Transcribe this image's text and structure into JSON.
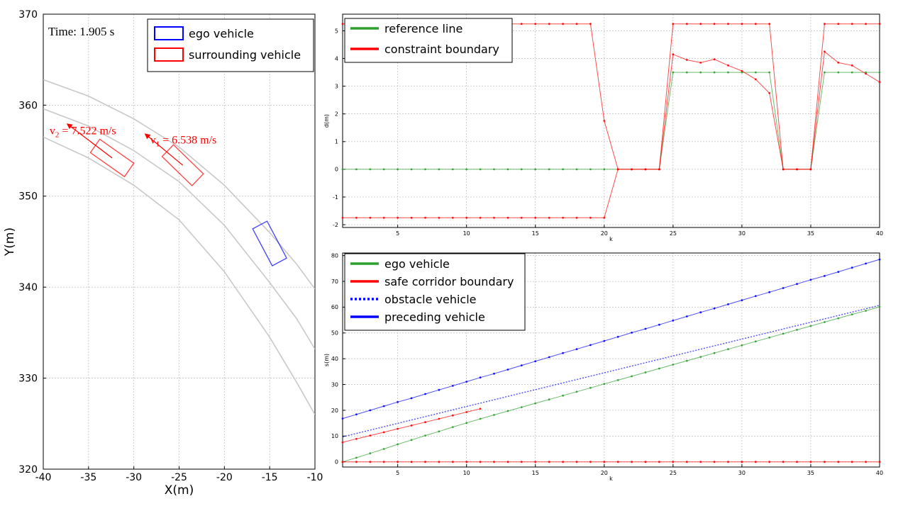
{
  "chart_data": [
    {
      "type": "scatter",
      "time_label": "Time: 1.905 s",
      "xlabel": "X(m)",
      "ylabel": "Y(m)",
      "xlim": [
        -40,
        -10
      ],
      "ylim": [
        320,
        370
      ],
      "xticks": [
        -40,
        -35,
        -30,
        -25,
        -20,
        -15,
        -10
      ],
      "yticks": [
        320,
        330,
        340,
        350,
        360,
        370
      ],
      "grid": true,
      "legend_position": "top-right",
      "legend": [
        {
          "name": "ego vehicle",
          "color": "#0000ff"
        },
        {
          "name": "surrounding vehicle",
          "color": "#ff0000"
        }
      ],
      "road_lines": [
        [
          [
            -40,
            362.8
          ],
          [
            -35,
            361.0
          ],
          [
            -30,
            358.5
          ],
          [
            -25,
            355.4
          ],
          [
            -20,
            351.2
          ],
          [
            -15,
            346.0
          ],
          [
            -12,
            342.5
          ],
          [
            -10,
            339.8
          ]
        ],
        [
          [
            -40,
            359.6
          ],
          [
            -35,
            357.7
          ],
          [
            -30,
            355.0
          ],
          [
            -25,
            351.6
          ],
          [
            -20,
            346.8
          ],
          [
            -15,
            340.5
          ],
          [
            -12,
            336.5
          ],
          [
            -10,
            333.2
          ]
        ],
        [
          [
            -40,
            356.5
          ],
          [
            -35,
            354.2
          ],
          [
            -30,
            351.2
          ],
          [
            -25,
            347.4
          ],
          [
            -20,
            341.7
          ],
          [
            -15,
            334.5
          ],
          [
            -12,
            329.5
          ],
          [
            -10,
            326.0
          ]
        ]
      ],
      "vehicles": [
        {
          "role": "ego",
          "color": "#0000ff",
          "center": [
            -15.0,
            344.8
          ],
          "heading_deg": -62,
          "length": 4.6,
          "width": 1.8
        },
        {
          "role": "surrounding",
          "color": "#ff0000",
          "center": [
            -32.4,
            354.2
          ],
          "heading_deg": -35,
          "length": 4.6,
          "width": 1.8,
          "arrow_to": [
            -37.3,
            357.9
          ],
          "speed_label": "v2 = 7.522 m/s",
          "speed_name": "v",
          "speed_sub": "2",
          "speed_value": " = 7.522 m/s",
          "label_at": [
            -39.3,
            356.8
          ]
        },
        {
          "role": "surrounding",
          "color": "#ff0000",
          "center": [
            -24.6,
            353.4
          ],
          "heading_deg": -44,
          "length": 4.6,
          "width": 1.8,
          "arrow_to": [
            -28.7,
            356.8
          ],
          "speed_label": "v1 = 6.538 m/s",
          "speed_name": "v",
          "speed_sub": "1",
          "speed_value": " = 6.538 m/s",
          "label_at": [
            -28.2,
            355.8
          ]
        }
      ]
    },
    {
      "type": "line",
      "xlabel": "k",
      "ylabel": "d(m)",
      "xlim": [
        1,
        40
      ],
      "ylim": [
        -2.1,
        5.6
      ],
      "xticks": [
        5,
        10,
        15,
        20,
        25,
        30,
        35,
        40
      ],
      "yticks": [
        -2,
        -1,
        0,
        1,
        2,
        3,
        4,
        5
      ],
      "grid": true,
      "legend_position": "top-left",
      "series": [
        {
          "name": "reference line",
          "color": "#2ca02c",
          "x": [
            1,
            2,
            3,
            4,
            5,
            6,
            7,
            8,
            9,
            10,
            11,
            12,
            13,
            14,
            15,
            16,
            17,
            18,
            19,
            20,
            21,
            22,
            23,
            24,
            25,
            26,
            27,
            28,
            29,
            30,
            31,
            32,
            33,
            34,
            35,
            36,
            37,
            38,
            39,
            40
          ],
          "y": [
            0,
            0,
            0,
            0,
            0,
            0,
            0,
            0,
            0,
            0,
            0,
            0,
            0,
            0,
            0,
            0,
            0,
            0,
            0,
            0,
            0,
            0,
            0,
            0,
            3.5,
            3.5,
            3.5,
            3.5,
            3.5,
            3.5,
            3.5,
            3.5,
            0,
            0,
            0,
            3.5,
            3.5,
            3.5,
            3.5,
            3.5
          ]
        },
        {
          "name": "constraint boundary",
          "color": "#ff0000",
          "x": [
            1,
            2,
            3,
            4,
            5,
            6,
            7,
            8,
            9,
            10,
            11,
            12,
            13,
            14,
            15,
            16,
            17,
            18,
            19,
            20,
            21,
            22,
            23,
            24,
            25,
            26,
            27,
            28,
            29,
            30,
            31,
            32,
            33,
            34,
            35,
            36,
            37,
            38,
            39,
            40
          ],
          "y": [
            5.25,
            5.25,
            5.25,
            5.25,
            5.25,
            5.25,
            5.25,
            5.25,
            5.25,
            5.25,
            5.25,
            5.25,
            5.25,
            5.25,
            5.25,
            5.25,
            5.25,
            5.25,
            5.25,
            1.75,
            0,
            0,
            0,
            0,
            5.25,
            5.25,
            5.25,
            5.25,
            5.25,
            5.25,
            5.25,
            5.25,
            0,
            0,
            0,
            5.25,
            5.25,
            5.25,
            5.25,
            5.25
          ]
        },
        {
          "name": "",
          "color": "#ff0000",
          "x": [
            1,
            2,
            3,
            4,
            5,
            6,
            7,
            8,
            9,
            10,
            11,
            12,
            13,
            14,
            15,
            16,
            17,
            18,
            19,
            20,
            21,
            22,
            23,
            24,
            25,
            26,
            27,
            28,
            29,
            30,
            31,
            32,
            33,
            34,
            35,
            36,
            37,
            38,
            39,
            40
          ],
          "y": [
            -1.75,
            -1.75,
            -1.75,
            -1.75,
            -1.75,
            -1.75,
            -1.75,
            -1.75,
            -1.75,
            -1.75,
            -1.75,
            -1.75,
            -1.75,
            -1.75,
            -1.75,
            -1.75,
            -1.75,
            -1.75,
            -1.75,
            -1.75,
            0,
            0,
            0,
            0,
            4.15,
            3.95,
            3.85,
            3.97,
            3.75,
            3.55,
            3.25,
            2.75,
            0,
            0,
            0,
            4.25,
            3.85,
            3.75,
            3.45,
            3.15
          ]
        }
      ]
    },
    {
      "type": "line",
      "xlabel": "k",
      "ylabel": "s(m)",
      "xlim": [
        1,
        40
      ],
      "ylim": [
        -2,
        81
      ],
      "xticks": [
        5,
        10,
        15,
        20,
        25,
        30,
        35,
        40
      ],
      "yticks": [
        0,
        10,
        20,
        30,
        40,
        50,
        60,
        70,
        80
      ],
      "grid": true,
      "legend_position": "top-left",
      "series": [
        {
          "name": "ego vehicle",
          "color": "#2ca02c",
          "style": "solid",
          "markers": true,
          "x": [
            1,
            2,
            3,
            4,
            5,
            6,
            7,
            8,
            9,
            10,
            11,
            12,
            13,
            14,
            15,
            16,
            17,
            18,
            19,
            20,
            21,
            22,
            23,
            24,
            25,
            26,
            27,
            28,
            29,
            30,
            31,
            32,
            33,
            34,
            35,
            36,
            37,
            38,
            39,
            40
          ],
          "y": [
            0,
            1.6,
            3.3,
            5.0,
            6.8,
            8.5,
            10.2,
            11.8,
            13.5,
            15.1,
            16.7,
            18.2,
            19.7,
            21.2,
            22.7,
            24.2,
            25.7,
            27.2,
            28.7,
            30.2,
            31.7,
            33.2,
            34.7,
            36.2,
            37.7,
            39.2,
            40.7,
            42.2,
            43.7,
            45.2,
            46.7,
            48.2,
            49.7,
            51.2,
            52.7,
            54.2,
            55.7,
            57.2,
            58.6,
            60.1
          ]
        },
        {
          "name": "safe corridor boundary",
          "color": "#ff0000",
          "style": "solid",
          "markers": true,
          "x": [
            1,
            2,
            3,
            4,
            5,
            6,
            7,
            8,
            9,
            10,
            11
          ],
          "y": [
            7.6,
            8.9,
            10.2,
            11.5,
            12.8,
            14.1,
            15.4,
            16.7,
            18.0,
            19.3,
            20.6
          ]
        },
        {
          "name": "",
          "color": "#ff0000",
          "style": "solid",
          "markers": true,
          "x": [
            1,
            2,
            3,
            4,
            5,
            6,
            7,
            8,
            9,
            10,
            11,
            12,
            13,
            14,
            15,
            16,
            17,
            18,
            19,
            20,
            21,
            22,
            23,
            24,
            25,
            26,
            27,
            28,
            29,
            30,
            31,
            32,
            33,
            34,
            35,
            36,
            37,
            38,
            39,
            40
          ],
          "y": [
            0,
            0,
            0,
            0,
            0,
            0,
            0,
            0,
            0,
            0,
            0,
            0,
            0,
            0,
            0,
            0,
            0,
            0,
            0,
            0,
            0,
            0,
            0,
            0,
            0,
            0,
            0,
            0,
            0,
            0,
            0,
            0,
            0,
            0,
            0,
            0,
            0,
            0,
            0,
            0
          ]
        },
        {
          "name": "obstacle vehicle",
          "color": "#0000ff",
          "style": "dotted",
          "markers": false,
          "x": [
            1,
            40
          ],
          "y": [
            9.7,
            60.7
          ]
        },
        {
          "name": "preceding vehicle",
          "color": "#0000ff",
          "style": "solid",
          "markers": true,
          "x": [
            1,
            2,
            3,
            4,
            5,
            6,
            7,
            8,
            9,
            10,
            11,
            12,
            13,
            14,
            15,
            16,
            17,
            18,
            19,
            20,
            21,
            22,
            23,
            24,
            25,
            26,
            27,
            28,
            29,
            30,
            31,
            32,
            33,
            34,
            35,
            36,
            37,
            38,
            39,
            40
          ],
          "y": [
            16.8,
            18.4,
            20.0,
            21.6,
            23.2,
            24.7,
            26.3,
            27.9,
            29.5,
            31.1,
            32.7,
            34.2,
            35.8,
            37.4,
            39.0,
            40.6,
            42.2,
            43.7,
            45.3,
            46.9,
            48.5,
            50.1,
            51.6,
            53.2,
            54.8,
            56.4,
            58.0,
            59.5,
            61.1,
            62.7,
            64.3,
            65.8,
            67.4,
            69.0,
            70.6,
            72.1,
            73.7,
            75.3,
            76.9,
            78.5
          ]
        }
      ]
    }
  ]
}
